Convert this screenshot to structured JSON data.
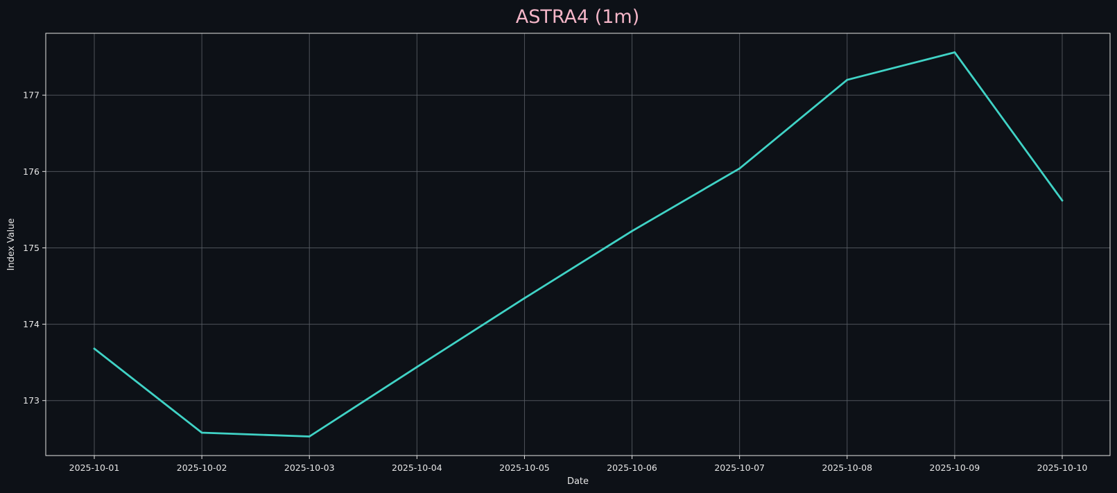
{
  "chart_data": {
    "type": "line",
    "title": "ASTRA4 (1m)",
    "xlabel": "Date",
    "ylabel": "Index Value",
    "x": [
      "2025-10-01",
      "2025-10-02",
      "2025-10-03",
      "2025-10-04",
      "2025-10-05",
      "2025-10-06",
      "2025-10-07",
      "2025-10-08",
      "2025-10-09",
      "2025-10-10"
    ],
    "series": [
      {
        "values": [
          173.68,
          172.58,
          172.53,
          173.44,
          174.34,
          175.22,
          176.04,
          177.2,
          177.56,
          175.62
        ],
        "color": "#40d3c6"
      }
    ],
    "yticks": [
      173,
      174,
      175,
      176,
      177
    ],
    "ylim": [
      172.28,
      177.81
    ],
    "grid": true,
    "colors": {
      "background": "#0d1117",
      "axes_frame": "#e6e6e6",
      "grid": "#5a5f66",
      "title": "#f4b6c8",
      "text": "#e6e6e6",
      "line": "#40d3c6"
    }
  }
}
